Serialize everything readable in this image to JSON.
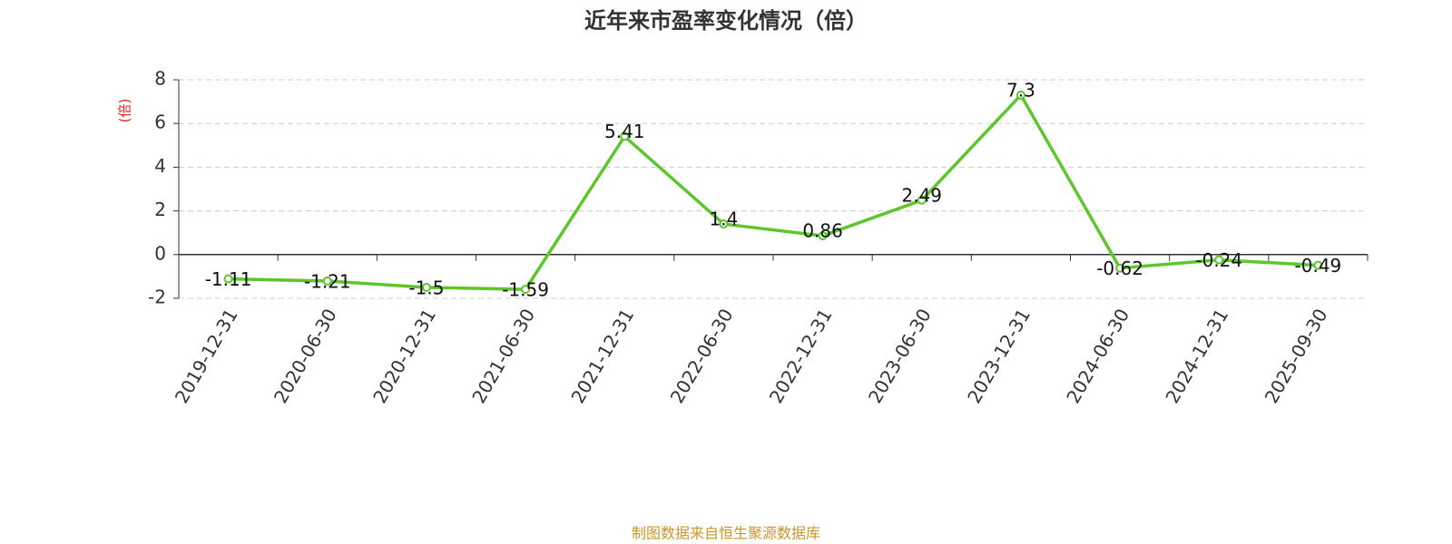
{
  "chart_data": {
    "type": "line",
    "title": "近年来市盈率变化情况（倍）",
    "y_label": "(倍)",
    "categories": [
      "2019-12-31",
      "2020-06-30",
      "2020-12-31",
      "2021-06-30",
      "2021-12-31",
      "2022-06-30",
      "2022-12-31",
      "2023-06-30",
      "2023-12-31",
      "2024-06-30",
      "2024-12-31",
      "2025-09-30"
    ],
    "values": [
      -1.11,
      -1.21,
      -1.5,
      -1.59,
      5.41,
      1.4,
      0.86,
      2.49,
      7.3,
      -0.62,
      -0.24,
      -0.49
    ],
    "color": "#5cc62a",
    "ylim": [
      -2,
      8
    ],
    "yticks": [
      -2,
      0,
      2,
      4,
      6,
      8
    ],
    "grid": true,
    "source": "制图数据来自恒生聚源数据库"
  }
}
